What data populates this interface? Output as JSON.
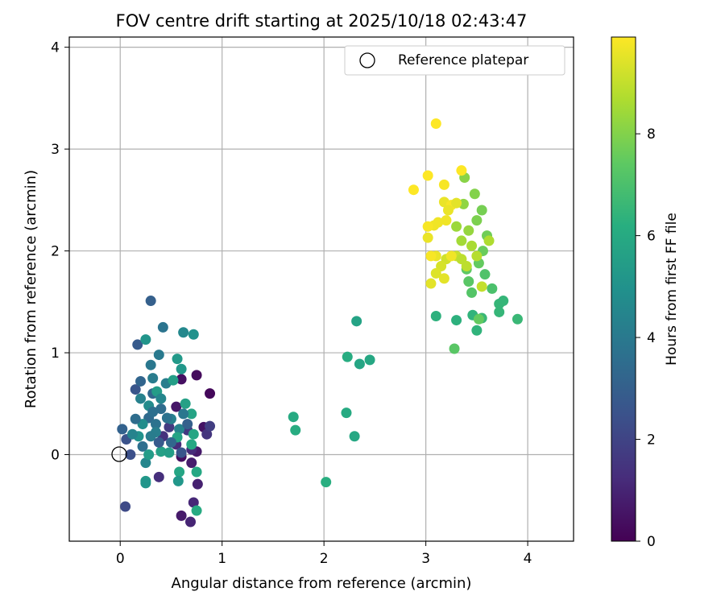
{
  "chart_data": {
    "type": "scatter",
    "title": "FOV centre drift starting at 2025/10/18 02:43:47",
    "xlabel": "Angular distance from reference (arcmin)",
    "ylabel": "Rotation from reference (arcmin)",
    "xlim": [
      -0.5,
      4.45
    ],
    "ylim": [
      -0.85,
      4.1
    ],
    "xticks": [
      0,
      1,
      2,
      3,
      4
    ],
    "yticks": [
      0,
      1,
      2,
      3,
      4
    ],
    "grid": true,
    "legend": {
      "position": "top-right",
      "entries": [
        "Reference platepar"
      ]
    },
    "reference_point": {
      "x": 0,
      "y": 0,
      "label": "Reference platepar"
    },
    "colorbar": {
      "label": "Hours from first FF file",
      "min": 0,
      "max": 9.9,
      "ticks": [
        0,
        2,
        4,
        6,
        8
      ],
      "colormap": "viridis"
    },
    "points": [
      {
        "x": 0.75,
        "y": 0.78,
        "c": 0.3
      },
      {
        "x": 0.88,
        "y": 0.6,
        "c": 0.2
      },
      {
        "x": 0.6,
        "y": 0.74,
        "c": 0.4
      },
      {
        "x": 0.55,
        "y": 0.47,
        "c": 0.6
      },
      {
        "x": 0.82,
        "y": 0.27,
        "c": 0.5
      },
      {
        "x": 0.75,
        "y": 0.03,
        "c": 0.7
      },
      {
        "x": 0.6,
        "y": -0.02,
        "c": 0.4
      },
      {
        "x": 0.7,
        "y": -0.08,
        "c": 0.8
      },
      {
        "x": 0.76,
        "y": -0.29,
        "c": 0.9
      },
      {
        "x": 0.6,
        "y": -0.6,
        "c": 0.7
      },
      {
        "x": 0.69,
        "y": -0.66,
        "c": 1.0
      },
      {
        "x": 0.72,
        "y": -0.47,
        "c": 1.1
      },
      {
        "x": 0.38,
        "y": -0.22,
        "c": 1.3
      },
      {
        "x": 0.55,
        "y": 0.1,
        "c": 1.2
      },
      {
        "x": 0.42,
        "y": 0.18,
        "c": 1.4
      },
      {
        "x": 0.85,
        "y": 0.2,
        "c": 1.5
      },
      {
        "x": 0.66,
        "y": 0.24,
        "c": 1.6
      },
      {
        "x": 0.48,
        "y": 0.27,
        "c": 1.7
      },
      {
        "x": 0.88,
        "y": 0.28,
        "c": 1.8
      },
      {
        "x": 0.7,
        "y": 0.05,
        "c": 1.2
      },
      {
        "x": 0.05,
        "y": -0.51,
        "c": 2.2
      },
      {
        "x": 0.1,
        "y": 0.0,
        "c": 2.4
      },
      {
        "x": 0.06,
        "y": 0.15,
        "c": 2.5
      },
      {
        "x": 0.15,
        "y": 0.64,
        "c": 2.6
      },
      {
        "x": 0.17,
        "y": 1.08,
        "c": 2.8
      },
      {
        "x": 0.3,
        "y": 1.51,
        "c": 3.0
      },
      {
        "x": 0.02,
        "y": 0.25,
        "c": 3.1
      },
      {
        "x": 0.2,
        "y": 0.72,
        "c": 3.2
      },
      {
        "x": 0.32,
        "y": 0.6,
        "c": 3.3
      },
      {
        "x": 0.28,
        "y": 0.36,
        "c": 3.4
      },
      {
        "x": 0.4,
        "y": 0.45,
        "c": 3.5
      },
      {
        "x": 0.22,
        "y": 0.08,
        "c": 3.6
      },
      {
        "x": 0.35,
        "y": 0.3,
        "c": 3.7
      },
      {
        "x": 0.42,
        "y": 1.25,
        "c": 3.8
      },
      {
        "x": 0.38,
        "y": 0.98,
        "c": 4.0
      },
      {
        "x": 0.3,
        "y": 0.88,
        "c": 3.9
      },
      {
        "x": 0.32,
        "y": 0.75,
        "c": 4.1
      },
      {
        "x": 0.45,
        "y": 0.7,
        "c": 4.2
      },
      {
        "x": 0.5,
        "y": 0.35,
        "c": 4.3
      },
      {
        "x": 0.58,
        "y": 0.25,
        "c": 4.4
      },
      {
        "x": 0.25,
        "y": -0.08,
        "c": 4.5
      },
      {
        "x": 0.62,
        "y": 1.2,
        "c": 4.6
      },
      {
        "x": 0.72,
        "y": 1.18,
        "c": 5.0
      },
      {
        "x": 0.25,
        "y": 1.13,
        "c": 5.1
      },
      {
        "x": 0.56,
        "y": 0.94,
        "c": 5.3
      },
      {
        "x": 0.6,
        "y": 0.84,
        "c": 5.2
      },
      {
        "x": 0.36,
        "y": 0.62,
        "c": 5.4
      },
      {
        "x": 0.52,
        "y": 0.73,
        "c": 5.5
      },
      {
        "x": 0.64,
        "y": 0.5,
        "c": 5.6
      },
      {
        "x": 0.7,
        "y": 0.4,
        "c": 5.7
      },
      {
        "x": 0.72,
        "y": 0.2,
        "c": 5.8
      },
      {
        "x": 0.7,
        "y": 0.1,
        "c": 5.9
      },
      {
        "x": 0.75,
        "y": -0.17,
        "c": 5.9
      },
      {
        "x": 0.75,
        "y": -0.55,
        "c": 6.0
      },
      {
        "x": 0.58,
        "y": -0.17,
        "c": 5.8
      },
      {
        "x": 0.57,
        "y": -0.26,
        "c": 5.2
      },
      {
        "x": 0.25,
        "y": -0.26,
        "c": 5.3
      },
      {
        "x": 0.25,
        "y": -0.28,
        "c": 5.1
      },
      {
        "x": 0.28,
        "y": 0.0,
        "c": 5.4
      },
      {
        "x": 0.4,
        "y": 0.03,
        "c": 5.6
      },
      {
        "x": 0.48,
        "y": 0.02,
        "c": 5.5
      },
      {
        "x": 0.56,
        "y": 0.17,
        "c": 5.7
      },
      {
        "x": 0.18,
        "y": 0.18,
        "c": 5.0
      },
      {
        "x": 0.22,
        "y": 0.3,
        "c": 4.8
      },
      {
        "x": 0.28,
        "y": 0.48,
        "c": 4.7
      },
      {
        "x": 0.4,
        "y": 0.55,
        "c": 4.5
      },
      {
        "x": 0.2,
        "y": 0.55,
        "c": 4.3
      },
      {
        "x": 0.35,
        "y": 0.22,
        "c": 4.2
      },
      {
        "x": 0.12,
        "y": 0.2,
        "c": 4.4
      },
      {
        "x": 0.3,
        "y": 0.18,
        "c": 4.1
      },
      {
        "x": 0.62,
        "y": 0.4,
        "c": 3.9
      },
      {
        "x": 0.46,
        "y": 0.36,
        "c": 3.7
      },
      {
        "x": 0.15,
        "y": 0.35,
        "c": 3.5
      },
      {
        "x": 0.32,
        "y": 0.42,
        "c": 3.6
      },
      {
        "x": 0.5,
        "y": 0.12,
        "c": 3.3
      },
      {
        "x": 0.66,
        "y": 0.3,
        "c": 3.0
      },
      {
        "x": 0.38,
        "y": 0.12,
        "c": 2.8
      },
      {
        "x": 0.6,
        "y": 0.02,
        "c": 2.6
      },
      {
        "x": 1.7,
        "y": 0.37,
        "c": 6.0
      },
      {
        "x": 1.72,
        "y": 0.24,
        "c": 6.1
      },
      {
        "x": 2.02,
        "y": -0.27,
        "c": 6.2
      },
      {
        "x": 2.22,
        "y": 0.41,
        "c": 6.0
      },
      {
        "x": 2.3,
        "y": 0.18,
        "c": 5.9
      },
      {
        "x": 2.23,
        "y": 0.96,
        "c": 6.1
      },
      {
        "x": 2.35,
        "y": 0.89,
        "c": 5.8
      },
      {
        "x": 2.45,
        "y": 0.93,
        "c": 5.9
      },
      {
        "x": 2.32,
        "y": 1.31,
        "c": 5.7
      },
      {
        "x": 3.1,
        "y": 1.36,
        "c": 6.3
      },
      {
        "x": 3.3,
        "y": 1.32,
        "c": 6.3
      },
      {
        "x": 3.46,
        "y": 1.37,
        "c": 6.4
      },
      {
        "x": 3.5,
        "y": 1.22,
        "c": 6.4
      },
      {
        "x": 3.55,
        "y": 1.34,
        "c": 6.6
      },
      {
        "x": 3.72,
        "y": 1.48,
        "c": 6.5
      },
      {
        "x": 3.76,
        "y": 1.51,
        "c": 6.5
      },
      {
        "x": 3.72,
        "y": 1.4,
        "c": 6.5
      },
      {
        "x": 3.9,
        "y": 1.33,
        "c": 6.6
      },
      {
        "x": 3.28,
        "y": 1.04,
        "c": 7.3
      },
      {
        "x": 3.52,
        "y": 1.33,
        "c": 7.5
      },
      {
        "x": 3.65,
        "y": 1.63,
        "c": 7.0
      },
      {
        "x": 3.58,
        "y": 1.77,
        "c": 7.1
      },
      {
        "x": 3.45,
        "y": 1.59,
        "c": 7.2
      },
      {
        "x": 3.42,
        "y": 1.7,
        "c": 7.3
      },
      {
        "x": 3.4,
        "y": 1.82,
        "c": 7.4
      },
      {
        "x": 3.52,
        "y": 1.88,
        "c": 7.5
      },
      {
        "x": 3.56,
        "y": 2.0,
        "c": 7.6
      },
      {
        "x": 3.6,
        "y": 2.15,
        "c": 7.7
      },
      {
        "x": 3.55,
        "y": 2.4,
        "c": 7.8
      },
      {
        "x": 3.5,
        "y": 2.3,
        "c": 7.9
      },
      {
        "x": 3.48,
        "y": 2.56,
        "c": 8.0
      },
      {
        "x": 3.38,
        "y": 2.72,
        "c": 8.1
      },
      {
        "x": 3.37,
        "y": 2.46,
        "c": 8.2
      },
      {
        "x": 3.42,
        "y": 2.2,
        "c": 8.3
      },
      {
        "x": 3.3,
        "y": 2.24,
        "c": 8.4
      },
      {
        "x": 3.35,
        "y": 2.1,
        "c": 8.5
      },
      {
        "x": 3.45,
        "y": 2.05,
        "c": 8.6
      },
      {
        "x": 3.62,
        "y": 2.1,
        "c": 8.7
      },
      {
        "x": 3.5,
        "y": 1.95,
        "c": 8.8
      },
      {
        "x": 3.4,
        "y": 1.85,
        "c": 8.9
      },
      {
        "x": 3.55,
        "y": 1.65,
        "c": 9.0
      },
      {
        "x": 3.3,
        "y": 1.95,
        "c": 9.1
      },
      {
        "x": 3.2,
        "y": 1.92,
        "c": 9.2
      },
      {
        "x": 3.15,
        "y": 1.85,
        "c": 9.3
      },
      {
        "x": 3.1,
        "y": 1.78,
        "c": 9.4
      },
      {
        "x": 3.05,
        "y": 1.68,
        "c": 9.5
      },
      {
        "x": 3.18,
        "y": 1.73,
        "c": 9.5
      },
      {
        "x": 3.1,
        "y": 1.95,
        "c": 9.6
      },
      {
        "x": 3.02,
        "y": 2.13,
        "c": 9.6
      },
      {
        "x": 3.08,
        "y": 2.25,
        "c": 9.7
      },
      {
        "x": 3.12,
        "y": 2.28,
        "c": 9.7
      },
      {
        "x": 3.2,
        "y": 2.3,
        "c": 9.7
      },
      {
        "x": 3.18,
        "y": 2.48,
        "c": 9.6
      },
      {
        "x": 3.25,
        "y": 2.45,
        "c": 9.8
      },
      {
        "x": 3.3,
        "y": 2.47,
        "c": 9.5
      },
      {
        "x": 3.22,
        "y": 2.4,
        "c": 9.6
      },
      {
        "x": 3.18,
        "y": 2.65,
        "c": 9.8
      },
      {
        "x": 3.35,
        "y": 2.79,
        "c": 9.9
      },
      {
        "x": 3.02,
        "y": 2.74,
        "c": 9.9
      },
      {
        "x": 2.88,
        "y": 2.6,
        "c": 9.9
      },
      {
        "x": 3.1,
        "y": 3.25,
        "c": 9.9
      },
      {
        "x": 3.02,
        "y": 2.24,
        "c": 9.8
      },
      {
        "x": 3.25,
        "y": 1.95,
        "c": 9.7
      },
      {
        "x": 3.35,
        "y": 1.92,
        "c": 8.9
      },
      {
        "x": 3.05,
        "y": 1.95,
        "c": 9.8
      }
    ]
  }
}
